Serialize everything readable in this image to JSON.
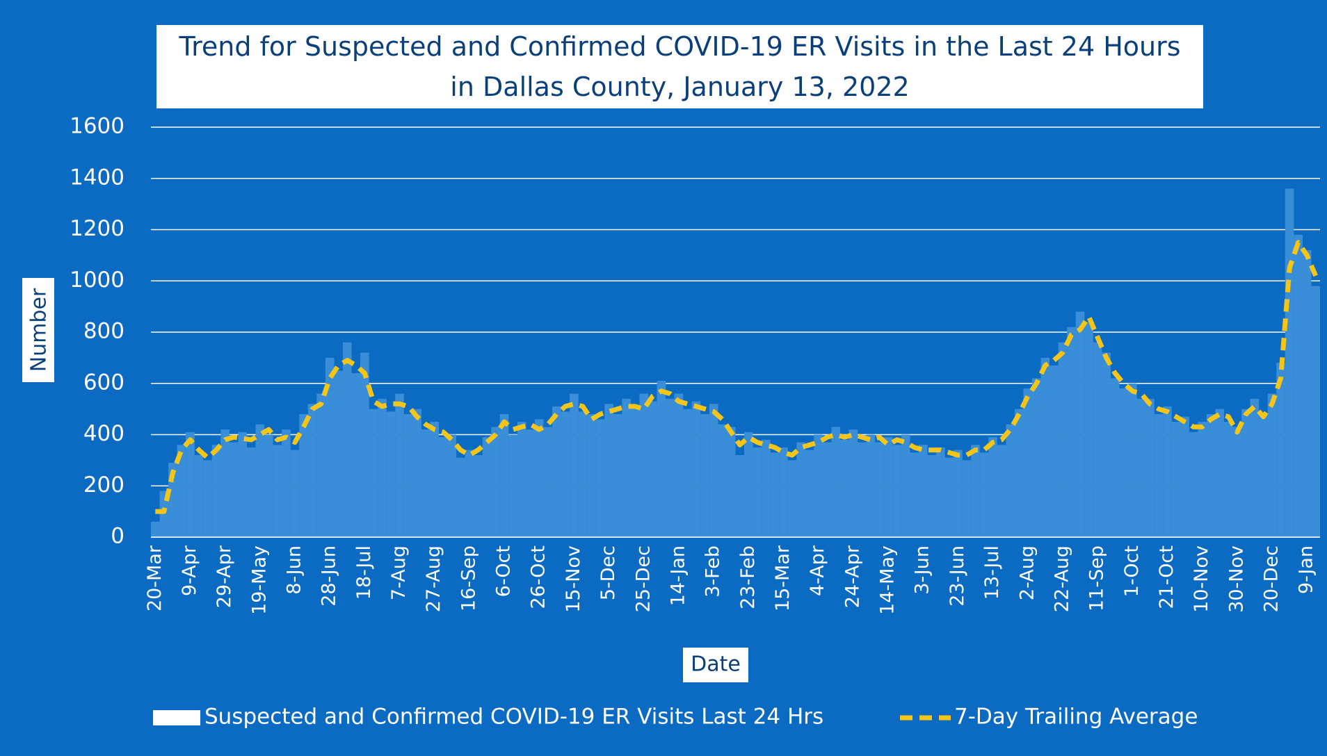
{
  "chart_data": {
    "type": "bar_line",
    "title": "Trend for Suspected and Confirmed COVID-19 ER Visits in the Last 24 Hours in Dallas County, January 13, 2022",
    "x_label": "Date",
    "y_label": "Number",
    "categories": [
      "20-Mar",
      null,
      null,
      null,
      "9-Apr",
      null,
      null,
      null,
      "29-Apr",
      null,
      null,
      null,
      "19-May",
      null,
      null,
      null,
      "8-Jun",
      null,
      null,
      null,
      "28-Jun",
      null,
      null,
      null,
      "18-Jul",
      null,
      null,
      null,
      "7-Aug",
      null,
      null,
      null,
      "27-Aug",
      null,
      null,
      null,
      "16-Sep",
      null,
      null,
      null,
      "6-Oct",
      null,
      null,
      null,
      "26-Oct",
      null,
      null,
      null,
      "15-Nov",
      null,
      null,
      null,
      "5-Dec",
      null,
      null,
      null,
      "25-Dec",
      null,
      null,
      null,
      "14-Jan",
      null,
      null,
      null,
      "3-Feb",
      null,
      null,
      null,
      "23-Feb",
      null,
      null,
      null,
      "15-Mar",
      null,
      null,
      null,
      "4-Apr",
      null,
      null,
      null,
      "24-Apr",
      null,
      null,
      null,
      "14-May",
      null,
      null,
      null,
      "3-Jun",
      null,
      null,
      null,
      "23-Jun",
      null,
      null,
      null,
      "13-Jul",
      null,
      null,
      null,
      "2-Aug",
      null,
      null,
      null,
      "22-Aug",
      null,
      null,
      null,
      "11-Sep",
      null,
      null,
      null,
      "1-Oct",
      null,
      null,
      null,
      "21-Oct",
      null,
      null,
      null,
      "10-Nov",
      null,
      null,
      null,
      "30-Nov",
      null,
      null,
      null,
      "20-Dec",
      null,
      null,
      null,
      "9-Jan",
      null
    ],
    "series": [
      {
        "name": "Suspected and Confirmed COVID-19 ER Visits Last 24 Hrs",
        "kind": "bar",
        "color": "#3a8ed8",
        "legend_color": "#ffffff",
        "values": [
          60,
          180,
          290,
          360,
          410,
          320,
          300,
          360,
          420,
          370,
          410,
          350,
          440,
          400,
          360,
          420,
          340,
          480,
          520,
          560,
          700,
          650,
          760,
          640,
          720,
          500,
          540,
          490,
          560,
          480,
          500,
          420,
          450,
          390,
          400,
          310,
          340,
          320,
          390,
          430,
          480,
          400,
          450,
          420,
          460,
          430,
          510,
          490,
          560,
          490,
          480,
          460,
          520,
          480,
          540,
          500,
          560,
          530,
          610,
          540,
          560,
          500,
          530,
          480,
          520,
          440,
          430,
          320,
          410,
          350,
          380,
          330,
          350,
          300,
          370,
          340,
          400,
          370,
          430,
          380,
          420,
          370,
          400,
          370,
          390,
          360,
          400,
          330,
          360,
          320,
          350,
          310,
          340,
          300,
          360,
          330,
          390,
          360,
          440,
          500,
          580,
          620,
          700,
          670,
          760,
          820,
          880,
          840,
          760,
          720,
          620,
          580,
          600,
          540,
          540,
          480,
          510,
          450,
          470,
          410,
          450,
          480,
          500,
          450,
          430,
          500,
          540,
          480,
          560,
          680,
          1360,
          1180,
          1120,
          980
        ]
      },
      {
        "name": "7-Day Trailing Average",
        "kind": "line",
        "color": "#f5c518",
        "values": [
          100,
          100,
          250,
          340,
          380,
          340,
          310,
          340,
          380,
          390,
          385,
          380,
          400,
          420,
          380,
          390,
          370,
          430,
          500,
          520,
          620,
          670,
          690,
          670,
          640,
          530,
          510,
          520,
          520,
          510,
          470,
          440,
          420,
          410,
          380,
          340,
          320,
          340,
          370,
          400,
          450,
          420,
          430,
          440,
          420,
          440,
          480,
          510,
          520,
          510,
          460,
          480,
          490,
          500,
          510,
          510,
          500,
          550,
          570,
          560,
          530,
          520,
          510,
          500,
          490,
          460,
          410,
          360,
          390,
          370,
          360,
          350,
          330,
          320,
          350,
          360,
          370,
          390,
          400,
          390,
          400,
          390,
          380,
          390,
          360,
          380,
          370,
          350,
          340,
          340,
          340,
          330,
          320,
          320,
          340,
          340,
          370,
          380,
          420,
          480,
          550,
          600,
          670,
          690,
          720,
          790,
          810,
          860,
          780,
          700,
          640,
          600,
          570,
          560,
          520,
          500,
          490,
          470,
          450,
          430,
          430,
          460,
          480,
          470,
          410,
          480,
          510,
          470,
          520,
          620,
          1050,
          1150,
          1100,
          1020
        ]
      }
    ],
    "ylim": [
      0,
      1600
    ],
    "yticks": [
      0,
      200,
      400,
      600,
      800,
      1000,
      1200,
      1400,
      1600
    ],
    "grid": true,
    "background": "#0b6bc3"
  }
}
